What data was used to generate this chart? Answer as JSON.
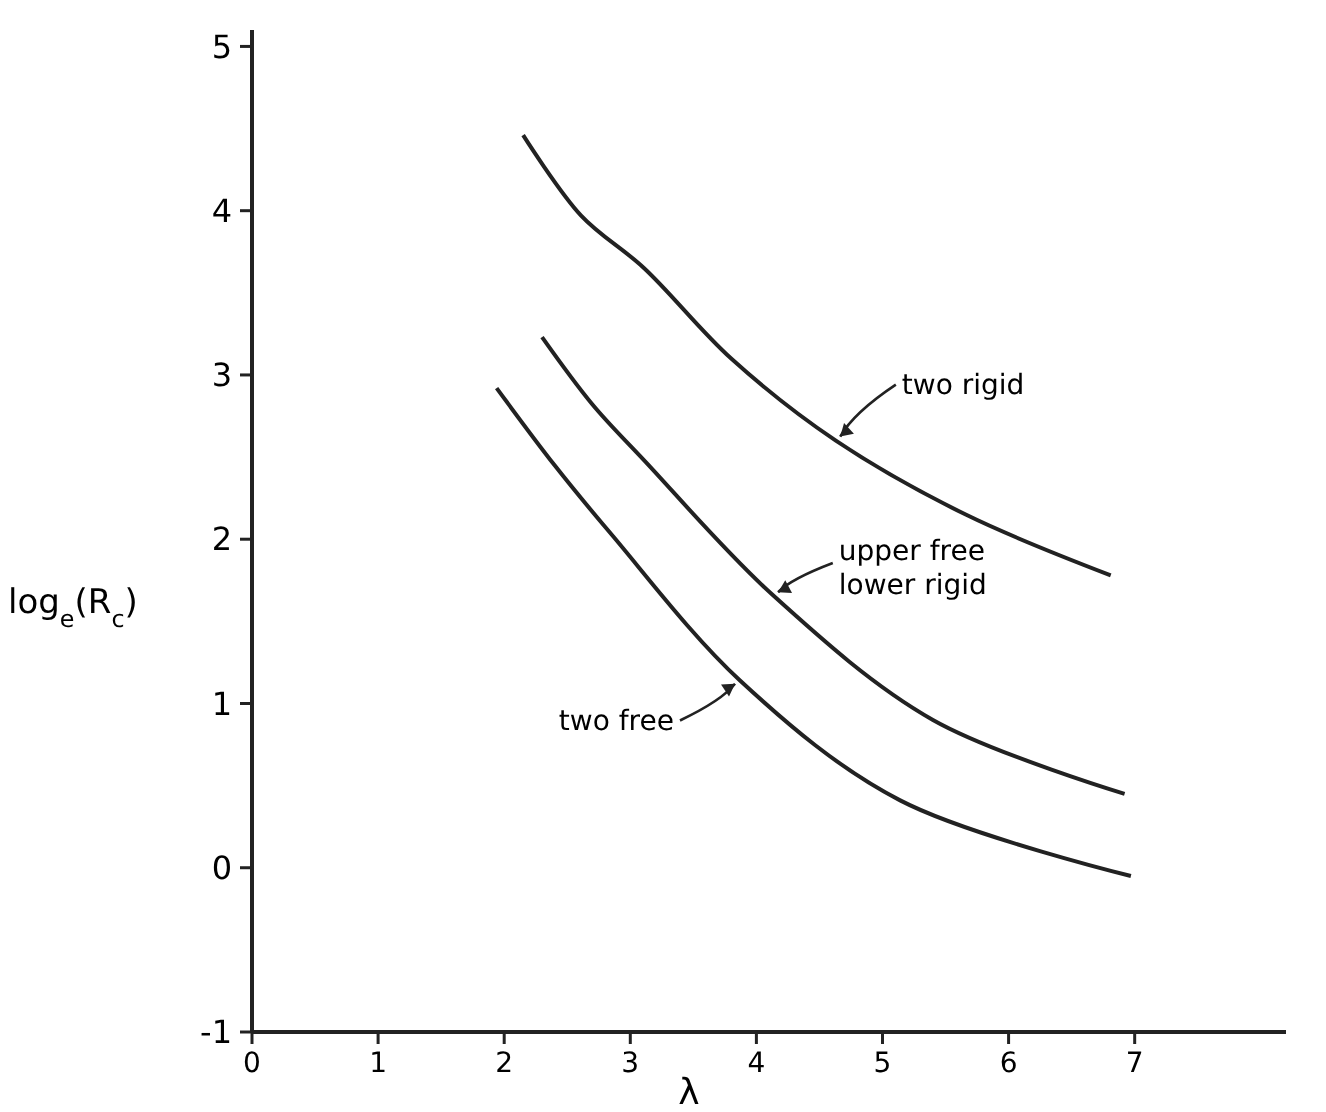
{
  "chart_data": {
    "type": "line",
    "xlabel": "λ",
    "ylabel": "log$_{e}$(R$_{c}$)",
    "xlim": [
      0,
      8.2
    ],
    "ylim": [
      -1,
      5.1
    ],
    "xticks": [
      0,
      1,
      2,
      3,
      4,
      5,
      6,
      7
    ],
    "yticks": [
      -1,
      0,
      1,
      2,
      3,
      4,
      5
    ],
    "grid": false,
    "marker": "none",
    "line_style": "solid",
    "series": [
      {
        "color": "#222222",
        "x": [
          2.15,
          2.61,
          3.11,
          3.8,
          4.63,
          5.66,
          6.81
        ],
        "values": [
          4.46,
          3.97,
          3.65,
          3.1,
          2.6,
          2.15,
          1.78
        ]
      },
      {
        "color": "#222222",
        "x": [
          2.3,
          2.7,
          3.11,
          4.13,
          5.4,
          6.92
        ],
        "values": [
          3.23,
          2.82,
          2.48,
          1.66,
          0.9,
          0.45
        ]
      },
      {
        "color": "#222222",
        "x": [
          1.94,
          2.4,
          2.85,
          3.87,
          5.14,
          6.97
        ],
        "values": [
          2.92,
          2.45,
          2.03,
          1.14,
          0.41,
          -0.05
        ]
      }
    ],
    "annotations": [
      {
        "text": "two rigid",
        "x": 4.63,
        "y": 2.6
      },
      {
        "text": "upper free lower rigid",
        "x": 4.13,
        "y": 1.66
      },
      {
        "text": "two free",
        "x": 3.87,
        "y": 1.14
      }
    ]
  }
}
